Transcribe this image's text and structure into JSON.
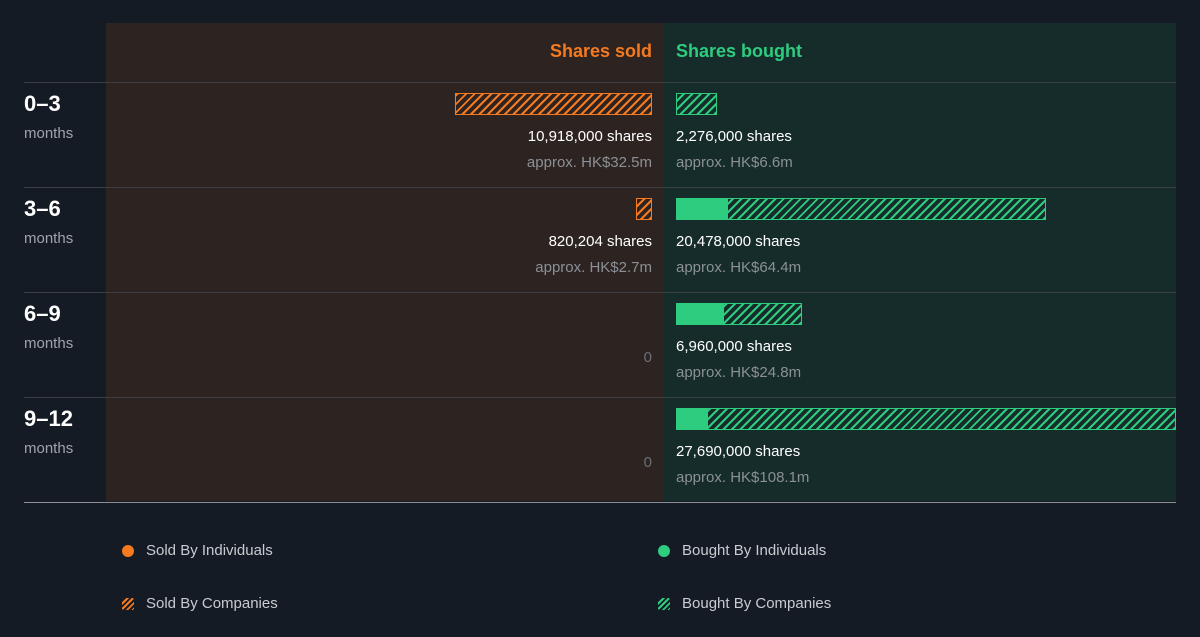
{
  "chart_data": {
    "type": "bar",
    "orientation": "horizontal-diverging",
    "title": "",
    "headers": {
      "sold": "Shares sold",
      "bought": "Shares bought"
    },
    "categories": [
      {
        "label": "0–3",
        "unit": "months"
      },
      {
        "label": "3–6",
        "unit": "months"
      },
      {
        "label": "6–9",
        "unit": "months"
      },
      {
        "label": "9–12",
        "unit": "months"
      }
    ],
    "sold": [
      {
        "shares": 10918000,
        "individuals": 0,
        "companies": 10918000,
        "shares_text": "10,918,000 shares",
        "approx_text": "approx. HK$32.5m",
        "zero_text": ""
      },
      {
        "shares": 820204,
        "individuals": 0,
        "companies": 820204,
        "shares_text": "820,204 shares",
        "approx_text": "approx. HK$2.7m",
        "zero_text": ""
      },
      {
        "shares": 0,
        "individuals": 0,
        "companies": 0,
        "shares_text": "",
        "approx_text": "",
        "zero_text": "0"
      },
      {
        "shares": 0,
        "individuals": 0,
        "companies": 0,
        "shares_text": "",
        "approx_text": "",
        "zero_text": "0"
      }
    ],
    "bought": [
      {
        "shares": 2276000,
        "individuals": 0,
        "companies": 2276000,
        "shares_text": "2,276,000 shares",
        "approx_text": "approx. HK$6.6m"
      },
      {
        "shares": 20478000,
        "individuals": 2800000,
        "companies": 17678000,
        "shares_text": "20,478,000 shares",
        "approx_text": "approx. HK$64.4m"
      },
      {
        "shares": 6960000,
        "individuals": 2600000,
        "companies": 4360000,
        "shares_text": "6,960,000 shares",
        "approx_text": "approx. HK$24.8m"
      },
      {
        "shares": 27690000,
        "individuals": 1700000,
        "companies": 25990000,
        "shares_text": "27,690,000 shares",
        "approx_text": "approx. HK$108.1m"
      }
    ],
    "max_shares": 27690000,
    "colors": {
      "sold": "#f57a1f",
      "bought": "#2ecc7e"
    },
    "legend": [
      {
        "label": "Sold By Individuals",
        "style": "solid",
        "color": "#f57a1f"
      },
      {
        "label": "Bought By Individuals",
        "style": "solid",
        "color": "#2ecc7e"
      },
      {
        "label": "Sold By Companies",
        "style": "hatched",
        "color": "#f57a1f"
      },
      {
        "label": "Bought By Companies",
        "style": "hatched",
        "color": "#2ecc7e"
      }
    ]
  }
}
